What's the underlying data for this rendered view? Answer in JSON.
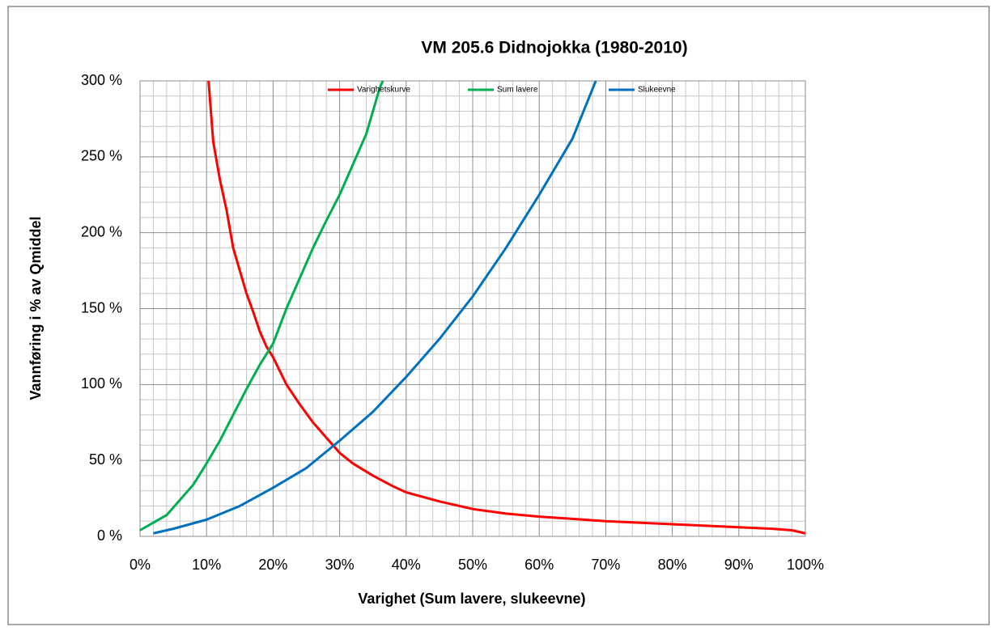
{
  "chart_data": {
    "type": "line",
    "title": "VM 205.6 Didnojokka  (1980-2010)",
    "xlabel": "Varighet  (Sum lavere, slukeevne)",
    "ylabel": "Vannføring i % av Qmiddel",
    "xlim": [
      0,
      100
    ],
    "ylim": [
      0,
      300
    ],
    "xticks": [
      {
        "value": 0,
        "label": "0%"
      },
      {
        "value": 10,
        "label": "10%"
      },
      {
        "value": 20,
        "label": "20%"
      },
      {
        "value": 30,
        "label": "30%"
      },
      {
        "value": 40,
        "label": "40%"
      },
      {
        "value": 50,
        "label": "50%"
      },
      {
        "value": 60,
        "label": "60%"
      },
      {
        "value": 70,
        "label": "70%"
      },
      {
        "value": 80,
        "label": "80%"
      },
      {
        "value": 90,
        "label": "90%"
      },
      {
        "value": 100,
        "label": "100%"
      }
    ],
    "yticks": [
      {
        "value": 0,
        "label": "0 %"
      },
      {
        "value": 50,
        "label": "50 %"
      },
      {
        "value": 100,
        "label": "100 %"
      },
      {
        "value": 150,
        "label": "150 %"
      },
      {
        "value": 200,
        "label": "200 %"
      },
      {
        "value": 250,
        "label": "250 %"
      },
      {
        "value": 300,
        "label": "300 %"
      }
    ],
    "grid": true,
    "legend": "top",
    "series": [
      {
        "name": "Varighetskurve",
        "color": "#ff0000",
        "x": [
          10.3,
          11,
          12,
          13,
          14,
          15,
          16,
          17,
          18,
          19,
          20,
          22,
          24,
          26,
          28,
          30,
          32,
          35,
          38,
          40,
          45,
          50,
          55,
          60,
          65,
          70,
          75,
          80,
          85,
          90,
          95,
          98,
          100
        ],
        "values": [
          300,
          260,
          235,
          215,
          190,
          175,
          160,
          148,
          135,
          125,
          118,
          100,
          87,
          75,
          65,
          55,
          48,
          40,
          33,
          29,
          23,
          18,
          15,
          13,
          11.5,
          10,
          9,
          8,
          7,
          6,
          5,
          4,
          2
        ]
      },
      {
        "name": "Sum lavere",
        "color": "#00b050",
        "x": [
          0,
          2,
          4,
          6,
          8,
          10,
          12,
          14,
          16,
          18,
          20,
          22,
          24,
          26,
          28,
          30,
          32,
          34,
          35,
          36,
          36.5
        ],
        "values": [
          4,
          9,
          14,
          24,
          34,
          48,
          63,
          80,
          97,
          113,
          127,
          150,
          170,
          190,
          208,
          225,
          245,
          265,
          280,
          295,
          300
        ]
      },
      {
        "name": "Slukeevne",
        "color": "#0070c0",
        "x": [
          2,
          5,
          10,
          15,
          20,
          25,
          30,
          35,
          40,
          45,
          50,
          55,
          60,
          65,
          68.5
        ],
        "values": [
          2,
          5,
          11,
          20,
          32,
          45,
          63,
          82,
          105,
          130,
          158,
          190,
          225,
          262,
          300
        ]
      }
    ]
  }
}
